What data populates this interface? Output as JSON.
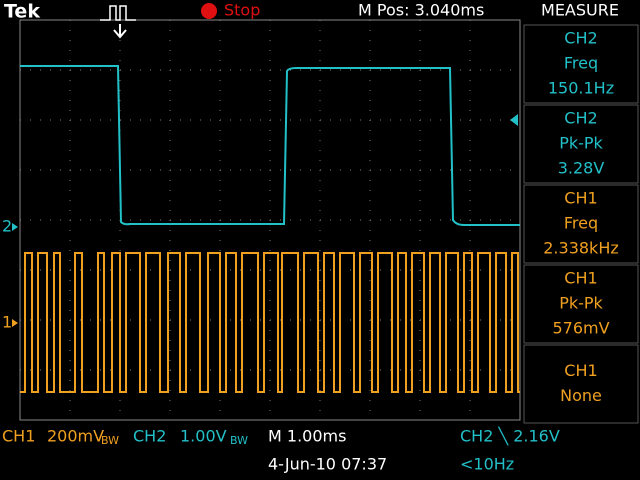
{
  "header": {
    "brand": "Tek",
    "state": "Stop",
    "position": "M Pos: 3.040ms",
    "menu": "MEASURE"
  },
  "markers": {
    "ch2": "2",
    "ch1": "1"
  },
  "measurements": [
    {
      "channel": "CH2",
      "name": "Freq",
      "value": "150.1Hz"
    },
    {
      "channel": "CH2",
      "name": "Pk-Pk",
      "value": "3.28V"
    },
    {
      "channel": "CH1",
      "name": "Freq",
      "value": "2.338kHz"
    },
    {
      "channel": "CH1",
      "name": "Pk-Pk",
      "value": "576mV"
    },
    {
      "channel": "CH1",
      "name": "None"
    }
  ],
  "footer": {
    "ch1_label": "CH1",
    "ch1_scale": "200mV",
    "ch1_bw": "BW",
    "ch2_label": "CH2",
    "ch2_scale": "1.00V",
    "ch2_bw": "BW",
    "timebase": "M 1.00ms",
    "trigger": "CH2 ╲ 2.16V",
    "date": "4-Jun-10 07:37",
    "trigger_freq": "<10Hz"
  }
}
